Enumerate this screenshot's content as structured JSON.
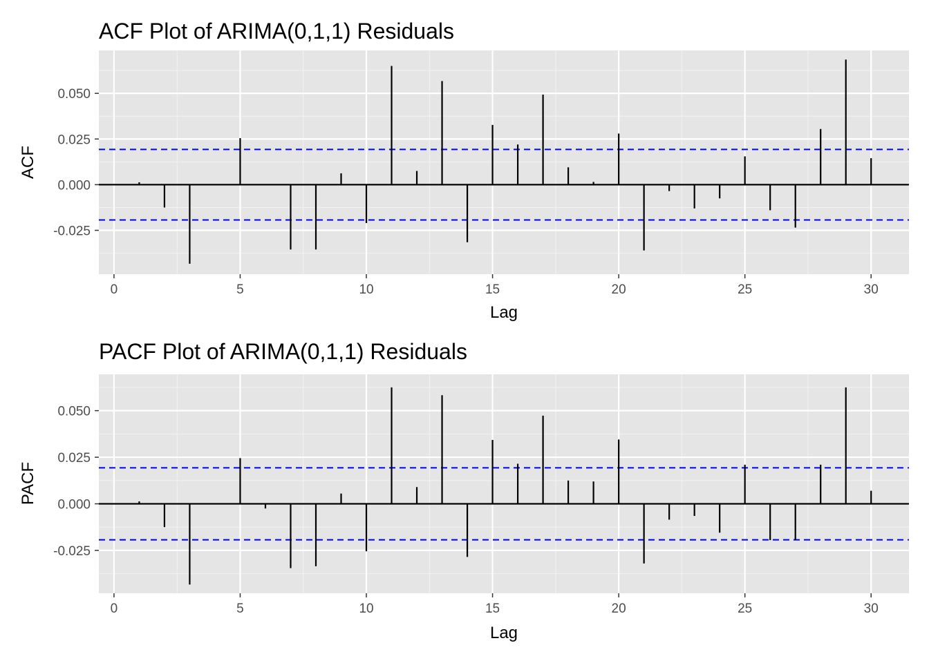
{
  "chart_data": [
    {
      "type": "bar",
      "subtype": "correlogram",
      "title": "ACF Plot of ARIMA(0,1,1) Residuals",
      "xlabel": "Lag",
      "ylabel": "ACF",
      "xlim": [
        -0.6,
        31.5
      ],
      "ylim": [
        -0.049,
        0.0735
      ],
      "x_ticks": [
        0,
        5,
        10,
        15,
        20,
        25,
        30
      ],
      "x_tick_labels": [
        "0",
        "5",
        "10",
        "15",
        "20",
        "25",
        "30"
      ],
      "y_ticks": [
        -0.025,
        0,
        0.025,
        0.05
      ],
      "y_tick_labels": [
        "-0.025",
        "0.000",
        "0.025",
        "0.050"
      ],
      "grid": true,
      "confidence_bounds": [
        0.0193,
        -0.0193
      ],
      "bound_color": "#0000ff",
      "lags": [
        1,
        2,
        3,
        4,
        5,
        6,
        7,
        8,
        9,
        10,
        11,
        12,
        13,
        14,
        15,
        16,
        17,
        18,
        19,
        20,
        21,
        22,
        23,
        24,
        25,
        26,
        27,
        28,
        29,
        30
      ],
      "values": [
        0.0013,
        -0.0125,
        -0.0433,
        0.0,
        0.0255,
        0.0,
        -0.0355,
        -0.0355,
        0.0062,
        -0.021,
        0.065,
        0.0075,
        0.0567,
        -0.0315,
        0.0327,
        0.022,
        0.0493,
        0.0095,
        0.0015,
        0.028,
        -0.036,
        -0.0035,
        -0.013,
        -0.0075,
        0.0155,
        -0.014,
        -0.0235,
        0.0305,
        0.0685,
        0.0145
      ]
    },
    {
      "type": "bar",
      "subtype": "correlogram",
      "title": "PACF Plot of ARIMA(0,1,1) Residuals",
      "xlabel": "Lag",
      "ylabel": "PACF",
      "xlim": [
        -0.6,
        31.5
      ],
      "ylim": [
        -0.048,
        0.0695
      ],
      "x_ticks": [
        0,
        5,
        10,
        15,
        20,
        25,
        30
      ],
      "x_tick_labels": [
        "0",
        "5",
        "10",
        "15",
        "20",
        "25",
        "30"
      ],
      "y_ticks": [
        -0.025,
        0,
        0.025,
        0.05
      ],
      "y_tick_labels": [
        "-0.025",
        "0.000",
        "0.025",
        "0.050"
      ],
      "grid": true,
      "confidence_bounds": [
        0.0193,
        -0.0193
      ],
      "bound_color": "#0000ff",
      "lags": [
        1,
        2,
        3,
        4,
        5,
        6,
        7,
        8,
        9,
        10,
        11,
        12,
        13,
        14,
        15,
        16,
        17,
        18,
        19,
        20,
        21,
        22,
        23,
        24,
        25,
        26,
        27,
        28,
        29,
        30
      ],
      "values": [
        0.0013,
        -0.0125,
        -0.0433,
        0.0,
        0.0245,
        -0.0025,
        -0.0345,
        -0.0335,
        0.0055,
        -0.0255,
        0.0625,
        0.009,
        0.0583,
        -0.0285,
        0.0343,
        0.0215,
        0.0473,
        0.0125,
        0.012,
        0.0345,
        -0.032,
        -0.0085,
        -0.0065,
        -0.0155,
        0.021,
        -0.0195,
        -0.0195,
        0.021,
        0.0625,
        0.007
      ]
    }
  ]
}
